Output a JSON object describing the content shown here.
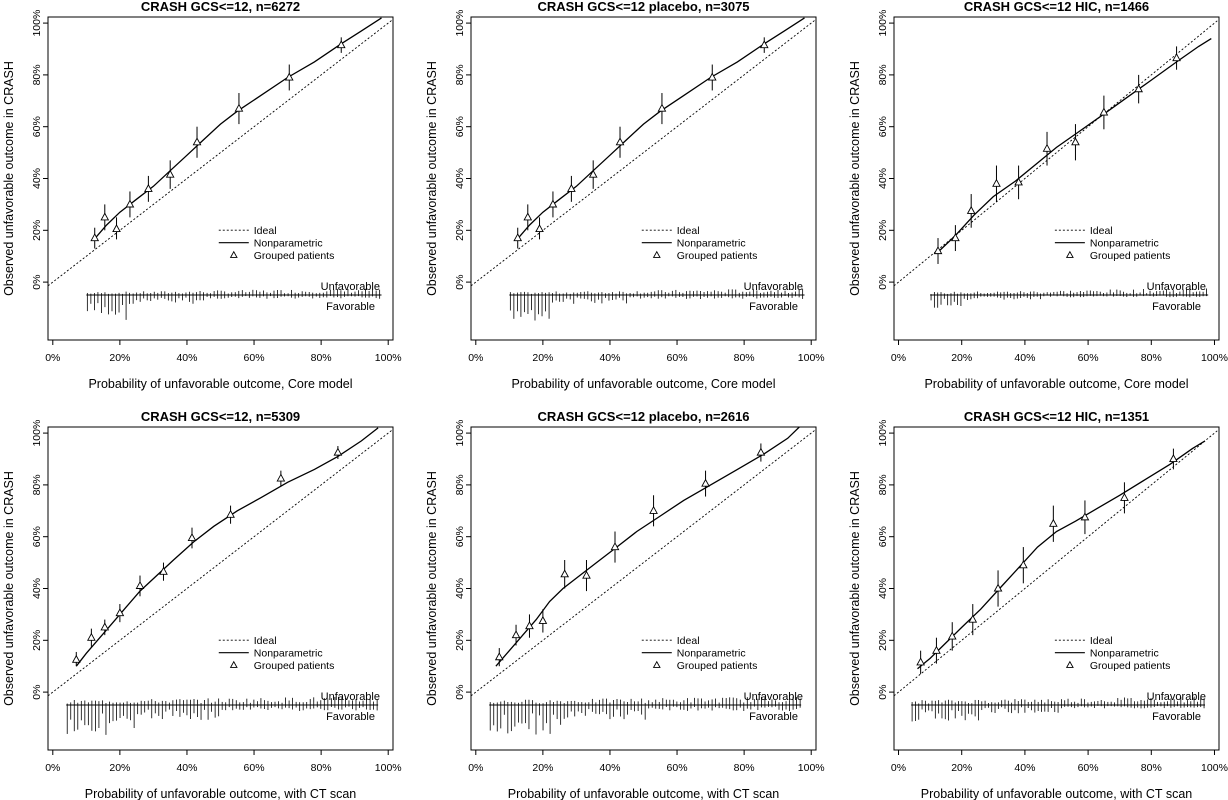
{
  "chart_data": [
    {
      "type": "scatter",
      "title": "CRASH GCS<=12, n=6272",
      "xlabel": "Probability of unfavorable outcome, Core model",
      "ylabel": "Observed unfavorable outcome in CRASH",
      "xlim": [
        0,
        100
      ],
      "ylim": [
        -20,
        100
      ],
      "x_ticks": [
        "0%",
        "20%",
        "40%",
        "60%",
        "80%",
        "100%"
      ],
      "y_ticks": [
        "0%",
        "20%",
        "40%",
        "60%",
        "80%",
        "100%"
      ],
      "legend": [
        "Ideal",
        "Nonparametric",
        "Grouped patients"
      ],
      "spike_labels": [
        "Unfavorable",
        "Favorable"
      ],
      "grouped_points": [
        {
          "x": 12.5,
          "y": 17,
          "lo": 13,
          "hi": 21
        },
        {
          "x": 15.5,
          "y": 25,
          "lo": 20,
          "hi": 30
        },
        {
          "x": 19,
          "y": 20.5,
          "lo": 16.5,
          "hi": 25
        },
        {
          "x": 23,
          "y": 30,
          "lo": 25,
          "hi": 35
        },
        {
          "x": 28.5,
          "y": 36,
          "lo": 31,
          "hi": 41
        },
        {
          "x": 35,
          "y": 41.5,
          "lo": 36,
          "hi": 47
        },
        {
          "x": 43,
          "y": 54,
          "lo": 48,
          "hi": 60
        },
        {
          "x": 55.5,
          "y": 67,
          "lo": 61,
          "hi": 73
        },
        {
          "x": 70.5,
          "y": 79,
          "lo": 74,
          "hi": 84
        },
        {
          "x": 86,
          "y": 91.5,
          "lo": 88.5,
          "hi": 94.5
        }
      ],
      "nonparametric": [
        [
          12,
          16
        ],
        [
          16,
          22
        ],
        [
          20,
          27
        ],
        [
          25,
          32
        ],
        [
          30,
          37
        ],
        [
          35,
          43
        ],
        [
          40,
          49
        ],
        [
          45,
          55
        ],
        [
          50,
          61
        ],
        [
          55,
          66
        ],
        [
          62,
          72
        ],
        [
          70,
          79
        ],
        [
          78,
          85
        ],
        [
          86,
          92
        ],
        [
          92,
          97
        ],
        [
          98,
          102
        ]
      ],
      "spike_range": [
        10,
        98
      ]
    },
    {
      "type": "scatter",
      "title": "CRASH GCS<=12 placebo, n=3075",
      "xlabel": "Probability of unfavorable outcome, Core model",
      "ylabel": "Observed unfavorable outcome in CRASH",
      "xlim": [
        0,
        100
      ],
      "ylim": [
        -20,
        100
      ],
      "x_ticks": [
        "0%",
        "20%",
        "40%",
        "60%",
        "80%",
        "100%"
      ],
      "y_ticks": [
        "0%",
        "20%",
        "40%",
        "60%",
        "80%",
        "100%"
      ],
      "legend": [
        "Ideal",
        "Nonparametric",
        "Grouped patients"
      ],
      "spike_labels": [
        "Unfavorable",
        "Favorable"
      ],
      "grouped_points": [
        {
          "x": 12.5,
          "y": 17,
          "lo": 13,
          "hi": 21
        },
        {
          "x": 15.5,
          "y": 25,
          "lo": 20,
          "hi": 30
        },
        {
          "x": 19,
          "y": 20.5,
          "lo": 16.5,
          "hi": 25
        },
        {
          "x": 23,
          "y": 30,
          "lo": 25,
          "hi": 35
        },
        {
          "x": 28.5,
          "y": 36,
          "lo": 31,
          "hi": 41
        },
        {
          "x": 35,
          "y": 41.5,
          "lo": 36,
          "hi": 47
        },
        {
          "x": 43,
          "y": 54,
          "lo": 48,
          "hi": 60
        },
        {
          "x": 55.5,
          "y": 67,
          "lo": 61,
          "hi": 73
        },
        {
          "x": 70.5,
          "y": 79,
          "lo": 74,
          "hi": 84
        },
        {
          "x": 86,
          "y": 91.5,
          "lo": 88.5,
          "hi": 94.5
        }
      ],
      "nonparametric": [
        [
          12,
          16
        ],
        [
          16,
          22
        ],
        [
          20,
          27
        ],
        [
          25,
          32
        ],
        [
          30,
          37
        ],
        [
          35,
          43
        ],
        [
          40,
          49
        ],
        [
          45,
          55
        ],
        [
          50,
          61
        ],
        [
          55,
          66
        ],
        [
          62,
          72
        ],
        [
          70,
          79
        ],
        [
          78,
          85
        ],
        [
          86,
          92
        ],
        [
          92,
          97
        ],
        [
          98,
          102
        ]
      ],
      "spike_range": [
        10,
        98
      ]
    },
    {
      "type": "scatter",
      "title": "CRASH GCS<=12 HIC, n=1466",
      "xlabel": "Probability of unfavorable outcome, Core model",
      "ylabel": "Observed unfavorable outcome in CRASH",
      "xlim": [
        0,
        100
      ],
      "ylim": [
        -20,
        100
      ],
      "x_ticks": [
        "0%",
        "20%",
        "40%",
        "60%",
        "80%",
        "100%"
      ],
      "y_ticks": [
        "0%",
        "20%",
        "40%",
        "60%",
        "80%",
        "100%"
      ],
      "legend": [
        "Ideal",
        "Nonparametric",
        "Grouped patients"
      ],
      "spike_labels": [
        "Unfavorable",
        "Favorable"
      ],
      "grouped_points": [
        {
          "x": 12.5,
          "y": 12,
          "lo": 7,
          "hi": 17
        },
        {
          "x": 18,
          "y": 17,
          "lo": 12,
          "hi": 22
        },
        {
          "x": 23,
          "y": 27.5,
          "lo": 21,
          "hi": 34
        },
        {
          "x": 31,
          "y": 38,
          "lo": 31,
          "hi": 45
        },
        {
          "x": 38,
          "y": 38.5,
          "lo": 32,
          "hi": 45
        },
        {
          "x": 47,
          "y": 51.5,
          "lo": 45,
          "hi": 58
        },
        {
          "x": 56,
          "y": 54,
          "lo": 47,
          "hi": 61
        },
        {
          "x": 65,
          "y": 65.5,
          "lo": 59,
          "hi": 72
        },
        {
          "x": 76,
          "y": 74.5,
          "lo": 69,
          "hi": 80
        },
        {
          "x": 88,
          "y": 86.5,
          "lo": 82,
          "hi": 91
        }
      ],
      "nonparametric": [
        [
          12,
          11
        ],
        [
          18,
          18
        ],
        [
          24,
          26
        ],
        [
          30,
          33
        ],
        [
          37,
          39
        ],
        [
          44,
          46
        ],
        [
          50,
          52
        ],
        [
          57,
          58
        ],
        [
          64,
          64
        ],
        [
          72,
          71
        ],
        [
          80,
          78
        ],
        [
          88,
          85
        ],
        [
          95,
          91
        ],
        [
          99,
          94
        ]
      ],
      "spike_range": [
        10,
        98
      ]
    },
    {
      "type": "scatter",
      "title": "CRASH GCS<=12, n=5309",
      "xlabel": "Probability of unfavorable outcome, with CT scan",
      "ylabel": "Observed unfavorable outcome in CRASH",
      "xlim": [
        0,
        100
      ],
      "ylim": [
        -20,
        100
      ],
      "x_ticks": [
        "0%",
        "20%",
        "40%",
        "60%",
        "80%",
        "100%"
      ],
      "y_ticks": [
        "0%",
        "20%",
        "40%",
        "60%",
        "80%",
        "100%"
      ],
      "legend": [
        "Ideal",
        "Nonparametric",
        "Grouped patients"
      ],
      "spike_labels": [
        "Unfavorable",
        "Favorable"
      ],
      "grouped_points": [
        {
          "x": 7,
          "y": 12.5,
          "lo": 10,
          "hi": 15.5
        },
        {
          "x": 11.5,
          "y": 21,
          "lo": 17.5,
          "hi": 24.5
        },
        {
          "x": 15.5,
          "y": 25,
          "lo": 22,
          "hi": 28
        },
        {
          "x": 20,
          "y": 30.5,
          "lo": 27,
          "hi": 34
        },
        {
          "x": 26,
          "y": 41,
          "lo": 37,
          "hi": 45
        },
        {
          "x": 33,
          "y": 46.5,
          "lo": 43,
          "hi": 50
        },
        {
          "x": 41.5,
          "y": 59.5,
          "lo": 55.5,
          "hi": 63.5
        },
        {
          "x": 53,
          "y": 68.5,
          "lo": 65,
          "hi": 72
        },
        {
          "x": 68,
          "y": 82.5,
          "lo": 79.5,
          "hi": 85.5
        },
        {
          "x": 85,
          "y": 92.5,
          "lo": 90,
          "hi": 95
        }
      ],
      "nonparametric": [
        [
          7,
          10
        ],
        [
          10,
          15
        ],
        [
          14,
          21
        ],
        [
          18,
          27
        ],
        [
          22,
          33
        ],
        [
          26,
          39
        ],
        [
          31,
          45
        ],
        [
          36,
          51
        ],
        [
          42,
          58
        ],
        [
          48,
          64
        ],
        [
          55,
          70
        ],
        [
          62,
          75
        ],
        [
          70,
          81
        ],
        [
          78,
          86
        ],
        [
          85,
          91
        ],
        [
          92,
          97
        ],
        [
          97,
          102
        ]
      ],
      "spike_range": [
        4,
        97
      ]
    },
    {
      "type": "scatter",
      "title": "CRASH GCS<=12 placebo, n=2616",
      "xlabel": "Probability of unfavorable outcome, with CT scan",
      "ylabel": "Observed unfavorable outcome in CRASH",
      "xlim": [
        0,
        100
      ],
      "ylim": [
        -20,
        100
      ],
      "x_ticks": [
        "0%",
        "20%",
        "40%",
        "60%",
        "80%",
        "100%"
      ],
      "y_ticks": [
        "0%",
        "20%",
        "40%",
        "60%",
        "80%",
        "100%"
      ],
      "legend": [
        "Ideal",
        "Nonparametric",
        "Grouped patients"
      ],
      "spike_labels": [
        "Unfavorable",
        "Favorable"
      ],
      "grouped_points": [
        {
          "x": 7,
          "y": 13.5,
          "lo": 10,
          "hi": 17
        },
        {
          "x": 12,
          "y": 22,
          "lo": 18,
          "hi": 26
        },
        {
          "x": 16,
          "y": 25.5,
          "lo": 21,
          "hi": 30
        },
        {
          "x": 20,
          "y": 27.5,
          "lo": 23,
          "hi": 32
        },
        {
          "x": 26.5,
          "y": 45.5,
          "lo": 40,
          "hi": 51
        },
        {
          "x": 33,
          "y": 45,
          "lo": 39,
          "hi": 51
        },
        {
          "x": 41.5,
          "y": 56,
          "lo": 50,
          "hi": 62
        },
        {
          "x": 53,
          "y": 70,
          "lo": 64,
          "hi": 76
        },
        {
          "x": 68.5,
          "y": 80.5,
          "lo": 75.5,
          "hi": 85.5
        },
        {
          "x": 85,
          "y": 92.5,
          "lo": 89,
          "hi": 96
        }
      ],
      "nonparametric": [
        [
          6,
          10
        ],
        [
          10,
          16
        ],
        [
          14,
          22
        ],
        [
          18,
          28
        ],
        [
          22,
          35
        ],
        [
          26,
          40
        ],
        [
          31,
          45
        ],
        [
          36,
          50
        ],
        [
          42,
          56
        ],
        [
          48,
          62
        ],
        [
          55,
          68
        ],
        [
          62,
          74
        ],
        [
          70,
          80
        ],
        [
          78,
          86
        ],
        [
          86,
          92
        ],
        [
          93,
          98
        ],
        [
          97,
          103
        ]
      ],
      "spike_range": [
        4,
        97
      ]
    },
    {
      "type": "scatter",
      "title": "CRASH GCS<=12 HIC, n=1351",
      "xlabel": "Probability of unfavorable outcome, with CT scan",
      "ylabel": "Observed unfavorable outcome in CRASH",
      "xlim": [
        0,
        100
      ],
      "ylim": [
        -20,
        100
      ],
      "x_ticks": [
        "0%",
        "20%",
        "40%",
        "60%",
        "80%",
        "100%"
      ],
      "y_ticks": [
        "0%",
        "20%",
        "40%",
        "60%",
        "80%",
        "100%"
      ],
      "legend": [
        "Ideal",
        "Nonparametric",
        "Grouped patients"
      ],
      "spike_labels": [
        "Unfavorable",
        "Favorable"
      ],
      "grouped_points": [
        {
          "x": 7,
          "y": 11.5,
          "lo": 7,
          "hi": 16
        },
        {
          "x": 12,
          "y": 16,
          "lo": 11,
          "hi": 21
        },
        {
          "x": 17,
          "y": 21.5,
          "lo": 16,
          "hi": 27
        },
        {
          "x": 23.5,
          "y": 28,
          "lo": 22,
          "hi": 34
        },
        {
          "x": 31.5,
          "y": 40,
          "lo": 33,
          "hi": 47
        },
        {
          "x": 39.5,
          "y": 49,
          "lo": 42,
          "hi": 56
        },
        {
          "x": 49,
          "y": 65,
          "lo": 58,
          "hi": 72
        },
        {
          "x": 59,
          "y": 67.5,
          "lo": 61,
          "hi": 74
        },
        {
          "x": 71.5,
          "y": 75,
          "lo": 69,
          "hi": 81
        },
        {
          "x": 87,
          "y": 90,
          "lo": 86,
          "hi": 94
        }
      ],
      "nonparametric": [
        [
          6,
          9
        ],
        [
          10,
          13
        ],
        [
          15,
          19
        ],
        [
          20,
          25
        ],
        [
          26,
          32
        ],
        [
          32,
          40
        ],
        [
          38,
          48
        ],
        [
          44,
          56
        ],
        [
          50,
          62
        ],
        [
          56,
          66
        ],
        [
          63,
          71
        ],
        [
          70,
          76
        ],
        [
          78,
          82
        ],
        [
          86,
          88
        ],
        [
          93,
          94
        ],
        [
          97,
          97
        ]
      ],
      "spike_range": [
        4,
        97
      ]
    }
  ]
}
